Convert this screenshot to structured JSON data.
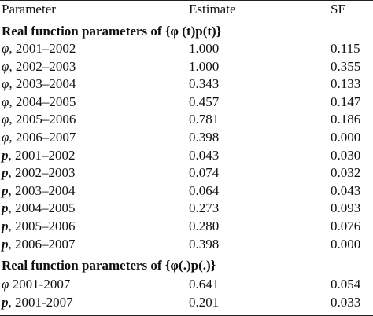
{
  "table": {
    "header": [
      "Parameter",
      "Estimate",
      "SE"
    ],
    "sections": [
      {
        "title": "Real function parameters of {φ (t)p(t)}",
        "rows": [
          {
            "symbol": "φ",
            "period": ", 2001–2002",
            "estimate": "1.000",
            "se": "0.115"
          },
          {
            "symbol": "φ",
            "period": ", 2002–2003",
            "estimate": "1.000",
            "se": "0.355"
          },
          {
            "symbol": "φ",
            "period": ", 2003–2004",
            "estimate": "0.343",
            "se": "0.133"
          },
          {
            "symbol": "φ",
            "period": ", 2004–2005",
            "estimate": "0.457",
            "se": "0.147"
          },
          {
            "symbol": "φ",
            "period": ", 2005–2006",
            "estimate": "0.781",
            "se": "0.186"
          },
          {
            "symbol": "φ",
            "period": ", 2006–2007",
            "estimate": "0.398",
            "se": "0.000"
          },
          {
            "symbol": "p",
            "period": ", 2001–2002",
            "estimate": "0.043",
            "se": "0.030"
          },
          {
            "symbol": "p",
            "period": ", 2002–2003",
            "estimate": "0.074",
            "se": "0.032"
          },
          {
            "symbol": "p",
            "period": ", 2003–2004",
            "estimate": "0.064",
            "se": "0.043"
          },
          {
            "symbol": "p",
            "period": ", 2004–2005",
            "estimate": "0.273",
            "se": "0.093"
          },
          {
            "symbol": "p",
            "period": ", 2005–2006",
            "estimate": "0.280",
            "se": "0.076"
          },
          {
            "symbol": "p",
            "period": ", 2006–2007",
            "estimate": "0.398",
            "se": "0.000"
          }
        ]
      },
      {
        "title": "Real function parameters of {φ(.)p(.)}",
        "rows": [
          {
            "symbol": "φ",
            "period": " 2001-2007",
            "estimate": "0.641",
            "se": "0.054"
          },
          {
            "symbol": "p",
            "period": ", 2001-2007",
            "estimate": "0.201",
            "se": "0.033"
          }
        ]
      }
    ]
  }
}
